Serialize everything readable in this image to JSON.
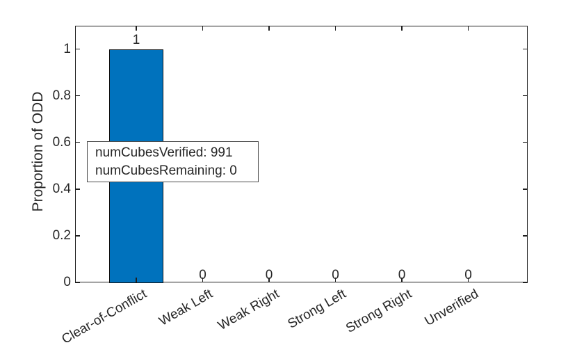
{
  "chart_data": {
    "type": "bar",
    "title": "",
    "xlabel": "",
    "ylabel": "Proportion of ODD",
    "categories": [
      "Clear-of-Conflict",
      "Weak Left",
      "Weak Right",
      "Strong Left",
      "Strong Right",
      "Unverified"
    ],
    "values": [
      1,
      0,
      0,
      0,
      0,
      0
    ],
    "bar_value_labels": [
      "1",
      "0",
      "0",
      "0",
      "0",
      "0"
    ],
    "ylim": [
      0,
      1.1
    ],
    "yticks": [
      0,
      0.2,
      0.4,
      0.6,
      0.8,
      1
    ],
    "ytick_labels": [
      "0",
      "0.2",
      "0.4",
      "0.6",
      "0.8",
      "1"
    ],
    "xtick_angle_deg": -30,
    "grid": false,
    "legend": null,
    "bar_width_fraction": 0.8,
    "bar_color": "#0072BD",
    "bar_edge_color": "#111111",
    "axis_color": "#1f1f1f",
    "text_color": "#262626",
    "annotation": {
      "lines": [
        "numCubesVerified: 991",
        "numCubesRemaining: 0"
      ],
      "border_color": "#4a4a4a",
      "background": "#ffffff"
    }
  }
}
